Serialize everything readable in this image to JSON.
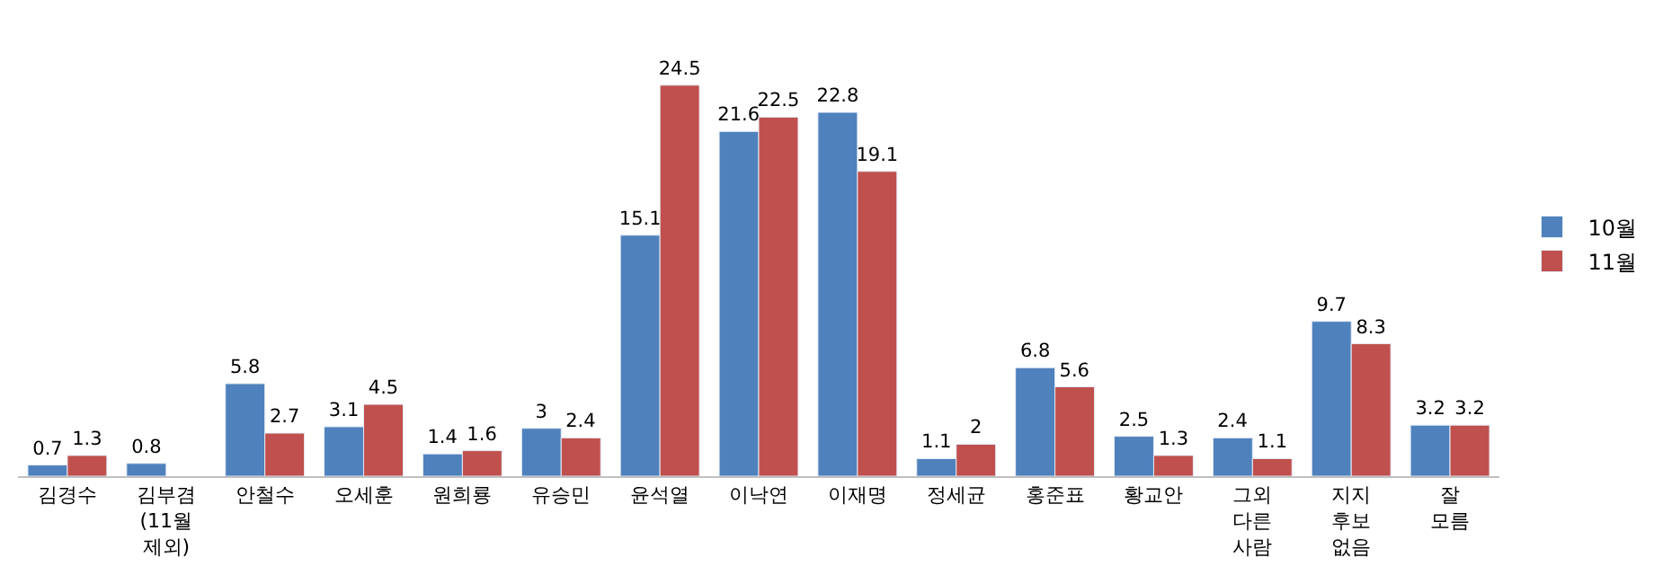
{
  "chart_data": {
    "type": "bar",
    "categories": [
      "김경수",
      "김부겸\n(11월\n제외)",
      "안철수",
      "오세훈",
      "원희룡",
      "유승민",
      "윤석열",
      "이낙연",
      "이재명",
      "정세균",
      "홍준표",
      "황교안",
      "그외\n다른\n사람",
      "지지\n후보\n없음",
      "잘\n모름"
    ],
    "series": [
      {
        "name": "10월",
        "color": "#4f81bd",
        "values": [
          0.7,
          0.8,
          5.8,
          3.1,
          1.4,
          3,
          15.1,
          21.6,
          22.8,
          1.1,
          6.8,
          2.5,
          2.4,
          9.7,
          3.2
        ]
      },
      {
        "name": "11월",
        "color": "#c0504d",
        "values": [
          1.3,
          null,
          2.7,
          4.5,
          1.6,
          2.4,
          24.5,
          22.5,
          19.1,
          2,
          5.6,
          1.3,
          1.1,
          8.3,
          3.2
        ]
      }
    ],
    "data_labels": true,
    "legend": "right"
  }
}
